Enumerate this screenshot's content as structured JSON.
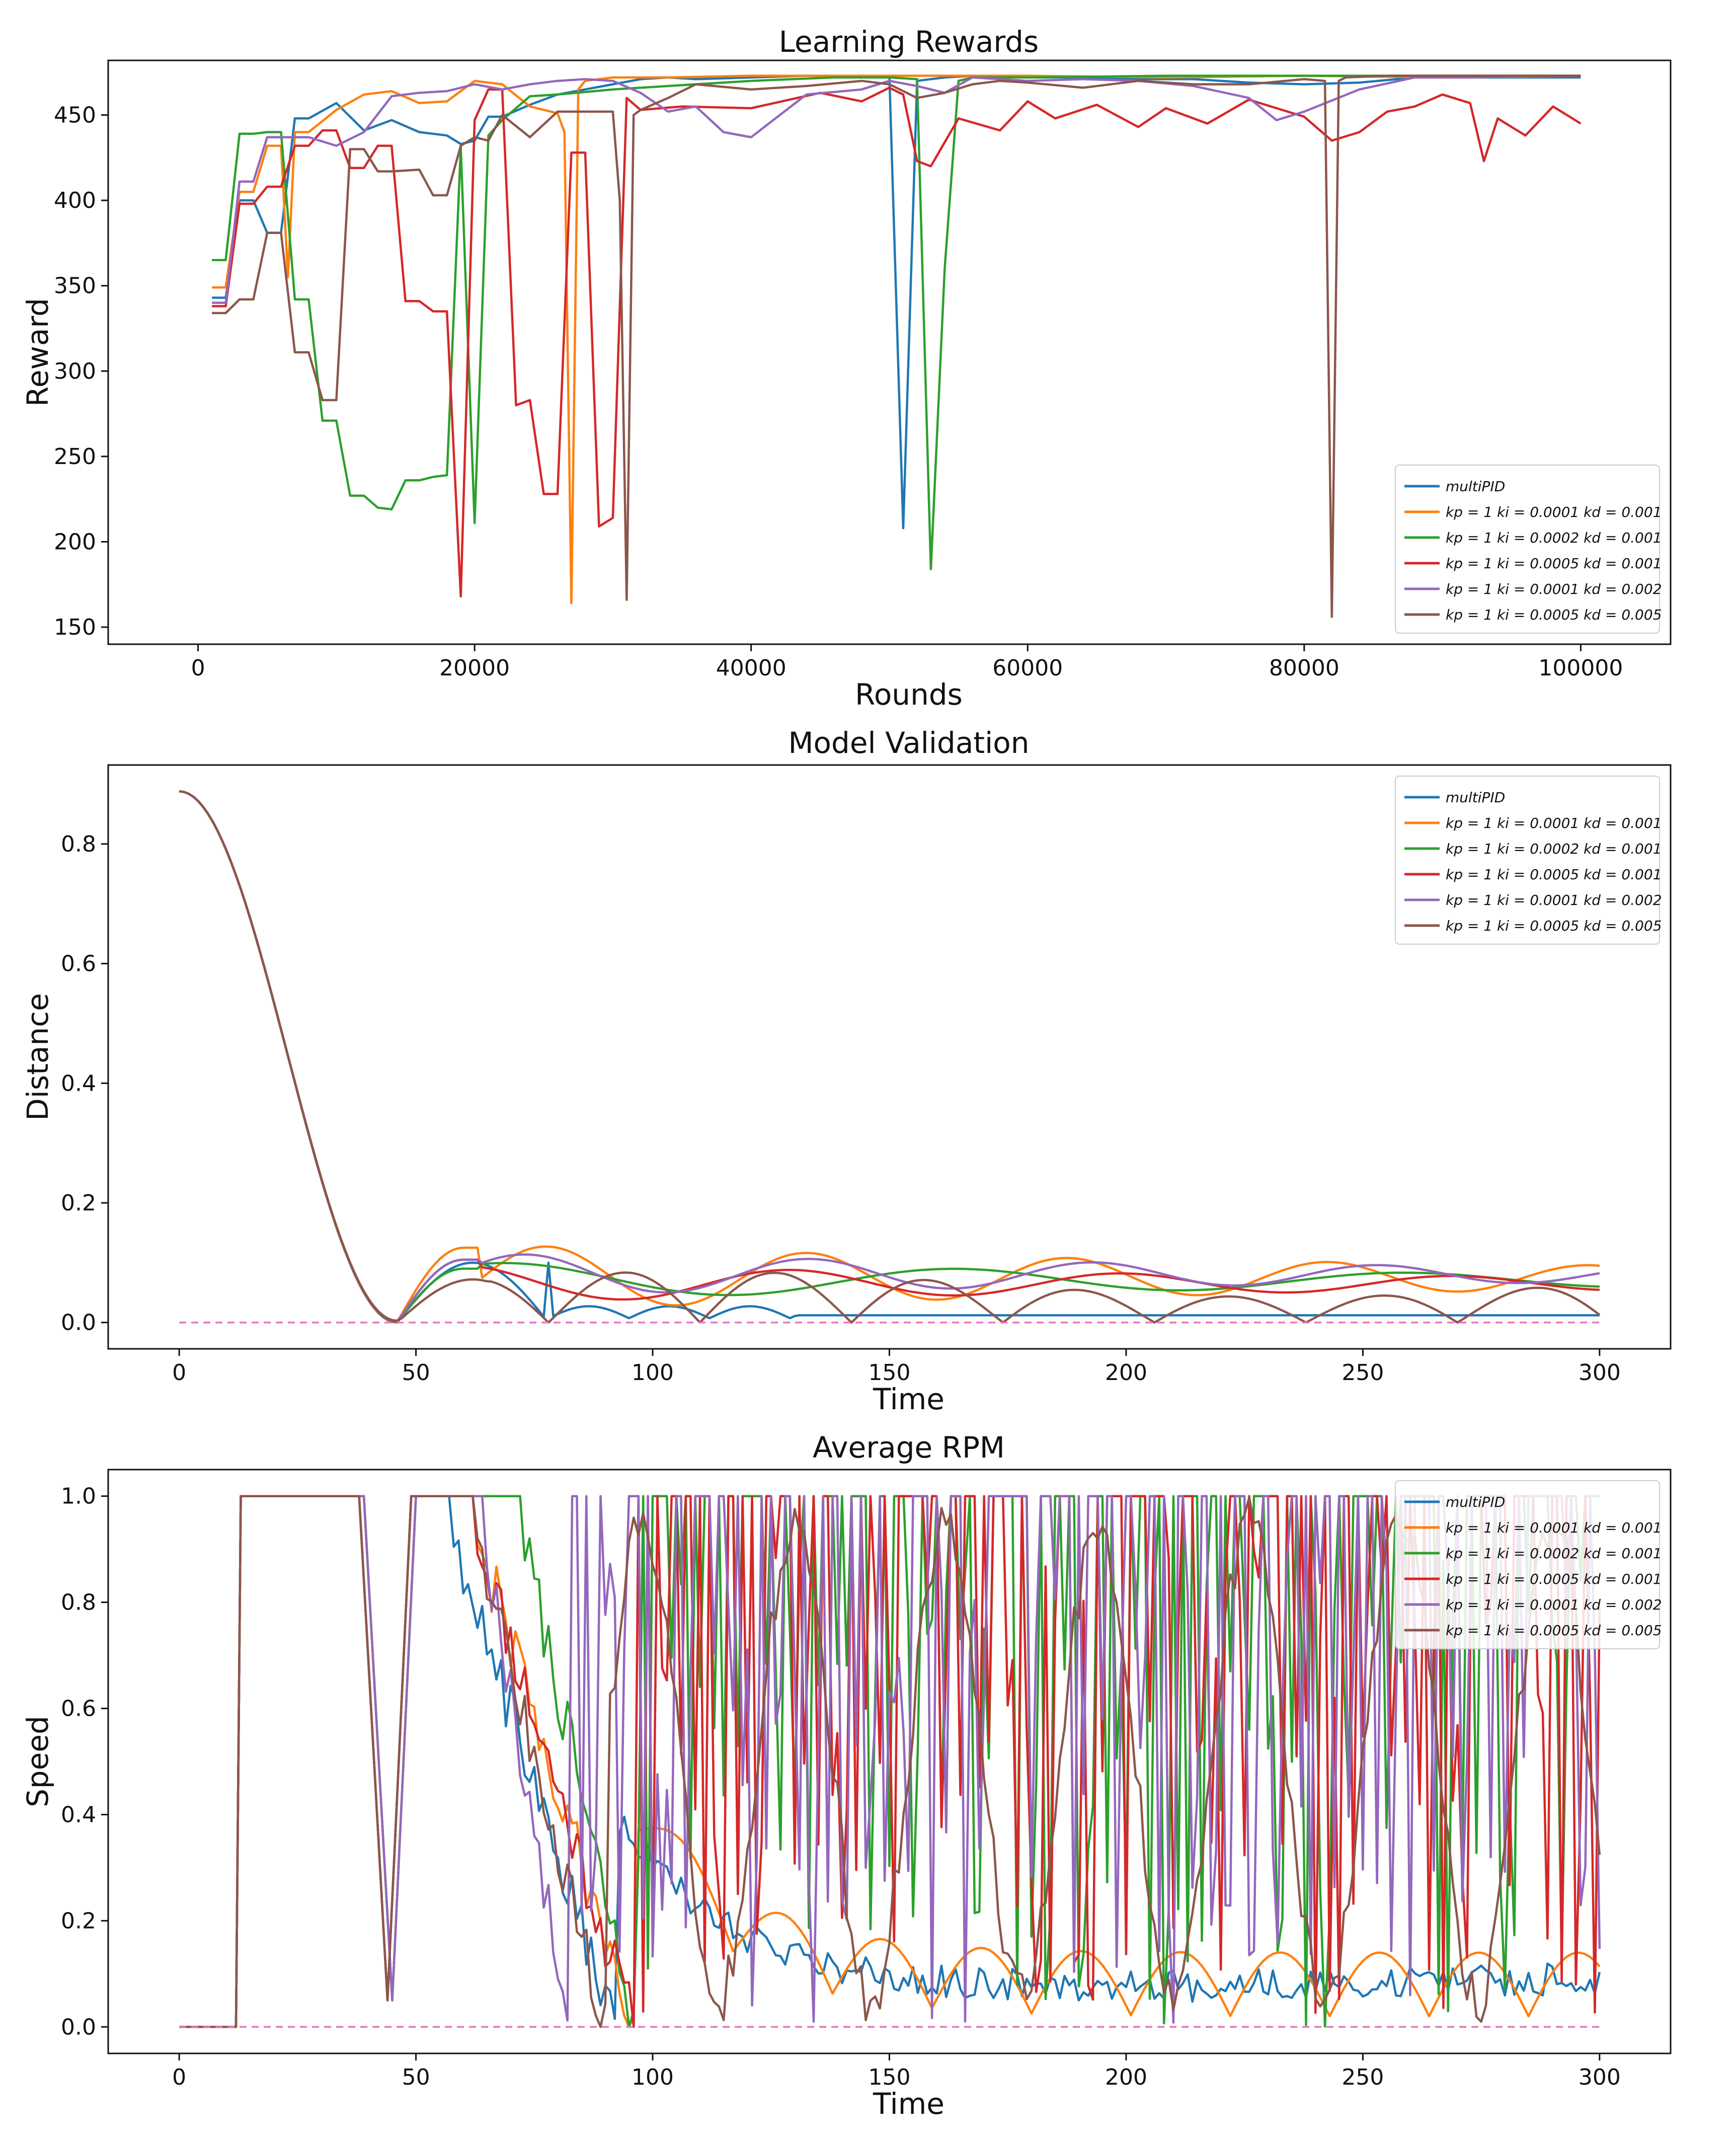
{
  "figure": {
    "colors": [
      "#1f77b4",
      "#ff7f0e",
      "#2ca02c",
      "#d62728",
      "#9467bd",
      "#8c564b"
    ],
    "reference_color": "#e377c2"
  },
  "chart_data": [
    {
      "id": "rewards",
      "type": "line",
      "title": "Learning Rewards",
      "xlabel": "Rounds",
      "ylabel": "Reward",
      "xlim": [
        -6500,
        106500
      ],
      "ylim": [
        140,
        482
      ],
      "xticks": [
        0,
        20000,
        40000,
        60000,
        80000,
        100000
      ],
      "yticks": [
        150,
        200,
        250,
        300,
        350,
        400,
        450
      ],
      "legend_position": "lower-right",
      "generated": false,
      "series": [
        {
          "name": "multiPID",
          "x": [
            1000,
            2000,
            3000,
            4000,
            5000,
            6000,
            7000,
            8000,
            10000,
            12000,
            14000,
            16000,
            18000,
            19000,
            20000,
            21000,
            22000,
            24000,
            26000,
            28000,
            30000,
            32000,
            34000,
            36000,
            40000,
            44000,
            48000,
            50000,
            51000,
            52000,
            54000,
            56000,
            60000,
            64000,
            68000,
            72000,
            76000,
            80000,
            84000,
            88000,
            92000,
            96000,
            100000
          ],
          "y": [
            343,
            343,
            400,
            400,
            381,
            381,
            448,
            448,
            457,
            441,
            447,
            440,
            438,
            433,
            435,
            449,
            449,
            456,
            462,
            465,
            468,
            471,
            472,
            471,
            472,
            473,
            472,
            473,
            208,
            470,
            472,
            473,
            472,
            472,
            471,
            471,
            469,
            468,
            469,
            472,
            472,
            472,
            472
          ]
        },
        {
          "name": "kp = 1 ki = 0.0001 kd = 0.001",
          "x": [
            1000,
            2000,
            3000,
            4000,
            5000,
            6000,
            6500,
            7000,
            8000,
            10000,
            12000,
            14000,
            16000,
            18000,
            20000,
            22000,
            24000,
            26000,
            26500,
            27000,
            27500,
            28000,
            30000,
            34000,
            40000,
            50000,
            60000,
            70000,
            80000,
            90000,
            100000
          ],
          "y": [
            349,
            349,
            405,
            405,
            432,
            432,
            355,
            440,
            440,
            453,
            462,
            464,
            457,
            458,
            470,
            468,
            455,
            451,
            440,
            164,
            465,
            470,
            472,
            472,
            473,
            473,
            473,
            472,
            473,
            472,
            473
          ]
        },
        {
          "name": "kp = 1 ki = 0.0002 kd = 0.001",
          "x": [
            1000,
            2000,
            3000,
            4000,
            5000,
            6000,
            7000,
            8000,
            9000,
            10000,
            11000,
            12000,
            13000,
            14000,
            15000,
            16000,
            17000,
            18000,
            19000,
            20000,
            21000,
            22000,
            24000,
            26000,
            30000,
            34000,
            40000,
            46000,
            50000,
            52000,
            53000,
            54000,
            55000,
            56000,
            60000,
            70000,
            80000,
            90000,
            100000
          ],
          "y": [
            365,
            365,
            439,
            439,
            440,
            440,
            342,
            342,
            271,
            271,
            227,
            227,
            220,
            219,
            236,
            236,
            238,
            239,
            431,
            211,
            438,
            447,
            461,
            462,
            465,
            467,
            470,
            472,
            472,
            471,
            184,
            360,
            470,
            472,
            472,
            473,
            473,
            473,
            473
          ]
        },
        {
          "name": "kp = 1 ki = 0.0005 kd = 0.001",
          "x": [
            1000,
            2000,
            3000,
            4000,
            5000,
            6000,
            7000,
            8000,
            9000,
            10000,
            11000,
            12000,
            13000,
            14000,
            15000,
            16000,
            17000,
            18000,
            19000,
            20000,
            21000,
            22000,
            23000,
            24000,
            25000,
            26000,
            27000,
            28000,
            29000,
            30000,
            31000,
            32000,
            35000,
            40000,
            45000,
            48000,
            50000,
            51000,
            52000,
            53000,
            55000,
            58000,
            60000,
            62000,
            65000,
            68000,
            70000,
            73000,
            76000,
            80000,
            82000,
            84000,
            86000,
            88000,
            90000,
            92000,
            93000,
            94000,
            96000,
            98000,
            100000
          ],
          "y": [
            338,
            338,
            398,
            398,
            408,
            408,
            432,
            432,
            441,
            441,
            419,
            419,
            432,
            432,
            341,
            341,
            335,
            335,
            168,
            447,
            465,
            465,
            280,
            283,
            228,
            228,
            428,
            428,
            209,
            214,
            460,
            453,
            455,
            454,
            463,
            458,
            466,
            462,
            423,
            420,
            448,
            441,
            458,
            448,
            456,
            443,
            454,
            445,
            459,
            449,
            435,
            440,
            452,
            455,
            462,
            457,
            423,
            448,
            438,
            455,
            445
          ]
        },
        {
          "name": "kp = 1 ki = 0.0001 kd = 0.002",
          "x": [
            1000,
            2000,
            3000,
            4000,
            5000,
            6000,
            7000,
            8000,
            10000,
            12000,
            14000,
            16000,
            18000,
            20000,
            22000,
            24000,
            26000,
            28000,
            30000,
            32000,
            34000,
            36000,
            38000,
            40000,
            44000,
            48000,
            50000,
            52000,
            54000,
            56000,
            60000,
            64000,
            68000,
            72000,
            76000,
            78000,
            80000,
            84000,
            88000,
            92000,
            96000,
            100000
          ],
          "y": [
            340,
            340,
            411,
            411,
            437,
            437,
            437,
            437,
            432,
            440,
            461,
            463,
            464,
            468,
            465,
            468,
            470,
            471,
            470,
            463,
            452,
            455,
            440,
            437,
            462,
            465,
            470,
            467,
            463,
            472,
            470,
            471,
            470,
            467,
            460,
            447,
            452,
            465,
            472,
            472,
            473,
            473
          ]
        },
        {
          "name": "kp = 1 ki = 0.0005 kd = 0.005",
          "x": [
            1000,
            2000,
            3000,
            4000,
            5000,
            6000,
            7000,
            8000,
            9000,
            10000,
            11000,
            12000,
            13000,
            14000,
            16000,
            17000,
            18000,
            19000,
            20000,
            21000,
            22000,
            24000,
            26000,
            28000,
            30000,
            30500,
            31000,
            31500,
            32000,
            34000,
            36000,
            40000,
            44000,
            48000,
            50000,
            52000,
            54000,
            56000,
            58000,
            60000,
            64000,
            68000,
            72000,
            76000,
            80000,
            81500,
            82000,
            82500,
            83000,
            86000,
            90000,
            100000
          ],
          "y": [
            334,
            334,
            342,
            342,
            381,
            381,
            311,
            311,
            283,
            283,
            430,
            430,
            417,
            417,
            418,
            403,
            403,
            432,
            437,
            435,
            450,
            437,
            452,
            452,
            452,
            400,
            166,
            450,
            453,
            460,
            468,
            465,
            467,
            470,
            468,
            460,
            463,
            468,
            470,
            469,
            466,
            470,
            468,
            468,
            471,
            470,
            156,
            470,
            472,
            473,
            473,
            473
          ]
        }
      ]
    },
    {
      "id": "validation",
      "type": "line",
      "title": "Model Validation",
      "xlabel": "Time",
      "ylabel": "Distance",
      "xlim": [
        -15,
        315
      ],
      "ylim": [
        -0.044,
        0.932
      ],
      "xticks": [
        0,
        50,
        100,
        150,
        200,
        250,
        300
      ],
      "yticks": [
        0.0,
        0.2,
        0.4,
        0.6,
        0.8
      ],
      "legend_position": "upper-right",
      "generated": true,
      "decay": {
        "start": 0.888,
        "zero_time": 46
      },
      "series": [
        {
          "name": "multiPID",
          "kind": "multipid",
          "peak": 0.1,
          "peak_time": 62,
          "settle": 0.012
        },
        {
          "name": "kp = 1 ki = 0.0001 kd = 0.001",
          "kind": "osc",
          "amp": 0.055,
          "period": 55,
          "mean": 0.075,
          "phase": 0.0,
          "peak": 0.125
        },
        {
          "name": "kp = 1 ki = 0.0002 kd = 0.001",
          "kind": "osc",
          "amp": 0.03,
          "period": 95,
          "mean": 0.07,
          "phase": 1.2,
          "peak": 0.09
        },
        {
          "name": "kp = 1 ki = 0.0005 kd = 0.001",
          "kind": "osc",
          "amp": 0.03,
          "period": 70,
          "mean": 0.065,
          "phase": 2.0,
          "peak": 0.105
        },
        {
          "name": "kp = 1 ki = 0.0001 kd = 0.002",
          "kind": "osc",
          "amp": 0.035,
          "period": 60,
          "mean": 0.08,
          "phase": 0.6,
          "peak": 0.105
        },
        {
          "name": "kp = 1 ki = 0.0005 kd = 0.005",
          "kind": "bounce",
          "amp": 0.085,
          "period": 32,
          "peak": 0.072
        }
      ],
      "reference": {
        "value": 0.0
      }
    },
    {
      "id": "rpm",
      "type": "line",
      "title": "Average RPM",
      "xlabel": "Time",
      "ylabel": "Speed",
      "xlim": [
        -15,
        315
      ],
      "ylim": [
        -0.05,
        1.05
      ],
      "xticks": [
        0,
        50,
        100,
        150,
        200,
        250,
        300
      ],
      "yticks": [
        0.0,
        0.2,
        0.4,
        0.6,
        0.8,
        1.0
      ],
      "legend_position": "upper-right",
      "generated": true,
      "series": [
        {
          "name": "multiPID",
          "kind": "settle_noisy",
          "dip_time": 44,
          "saturate_until": 57,
          "descend_end": 92,
          "tail": 0.05
        },
        {
          "name": "kp = 1 ki = 0.0001 kd = 0.001",
          "kind": "settle_wave",
          "dip_time": 45,
          "saturate_until": 62,
          "descend_end": 96,
          "tail_amp": 0.12,
          "tail_period": 21
        },
        {
          "name": "kp = 1 ki = 0.0002 kd = 0.001",
          "kind": "chatter",
          "dip_time": 45,
          "saturate_until": 72,
          "descend_end": 96,
          "seed": 7
        },
        {
          "name": "kp = 1 ki = 0.0005 kd = 0.001",
          "kind": "chatter",
          "dip_time": 44,
          "saturate_until": 62,
          "descend_end": 96,
          "seed": 11
        },
        {
          "name": "kp = 1 ki = 0.0001 kd = 0.002",
          "kind": "chatter",
          "dip_time": 45,
          "saturate_until": 64,
          "descend_end": 82,
          "seed": 19
        },
        {
          "name": "kp = 1 ki = 0.0005 kd = 0.005",
          "kind": "settle_wave_big",
          "dip_time": 44,
          "saturate_until": 62,
          "descend_end": 90,
          "tail_amp": 0.45,
          "tail_period": 32
        }
      ],
      "reference": {
        "value": 0.0
      }
    }
  ]
}
